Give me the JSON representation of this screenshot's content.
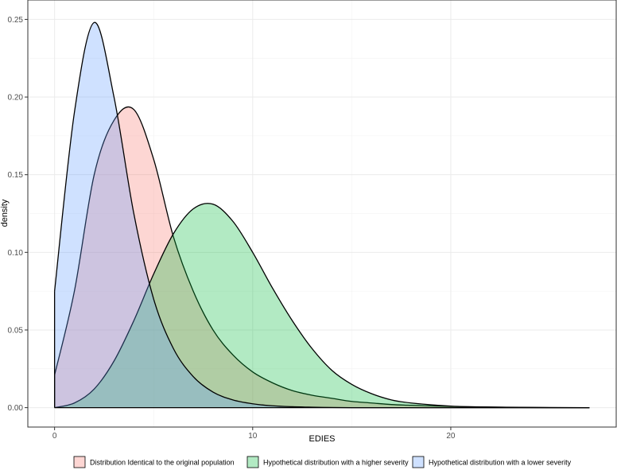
{
  "chart_data": {
    "type": "area",
    "title": "",
    "xlabel": "EDIES",
    "ylabel": "density",
    "xlim": [
      -1.35,
      28.35
    ],
    "ylim": [
      -0.0125,
      0.2625
    ],
    "x_ticks": [
      0,
      10,
      20
    ],
    "x_tick_labels": [
      "0",
      "10",
      "20"
    ],
    "y_ticks": [
      0,
      0.05,
      0.1,
      0.15,
      0.2,
      0.25
    ],
    "y_tick_labels": [
      "0.00",
      "0.05",
      "0.10",
      "0.15",
      "0.20",
      "0.25"
    ],
    "grid": true,
    "legend_position": "bottom",
    "x": [
      0,
      1,
      2,
      3,
      4,
      5,
      6,
      7,
      8,
      9,
      10,
      11,
      12,
      13,
      14,
      15,
      16,
      17,
      18,
      20,
      22,
      25,
      27
    ],
    "series": [
      {
        "name": "Distribution Identical to the original population",
        "color": "#F8766D",
        "values": [
          0.021,
          0.075,
          0.15,
          0.185,
          0.192,
          0.16,
          0.11,
          0.075,
          0.05,
          0.034,
          0.023,
          0.016,
          0.011,
          0.008,
          0.006,
          0.004,
          0.003,
          0.002,
          0.0015,
          0.0008,
          0.0004,
          0.0001,
          0.0
        ]
      },
      {
        "name": "Hypothetical distribution with a higher severity",
        "color": "#00BA38",
        "values": [
          0.0,
          0.003,
          0.012,
          0.03,
          0.056,
          0.086,
          0.112,
          0.128,
          0.131,
          0.12,
          0.1,
          0.077,
          0.056,
          0.038,
          0.024,
          0.015,
          0.009,
          0.005,
          0.003,
          0.001,
          0.0003,
          0.0,
          0.0
        ]
      },
      {
        "name": "Hypothetical distribution with a lower severity",
        "color": "#619CFF",
        "values": [
          0.075,
          0.19,
          0.248,
          0.2,
          0.125,
          0.07,
          0.038,
          0.02,
          0.01,
          0.005,
          0.0025,
          0.0012,
          0.0006,
          0.0003,
          0.0001,
          0.0,
          0.0,
          0.0,
          0.0,
          0.0,
          0.0,
          0.0,
          0.0
        ]
      }
    ]
  }
}
